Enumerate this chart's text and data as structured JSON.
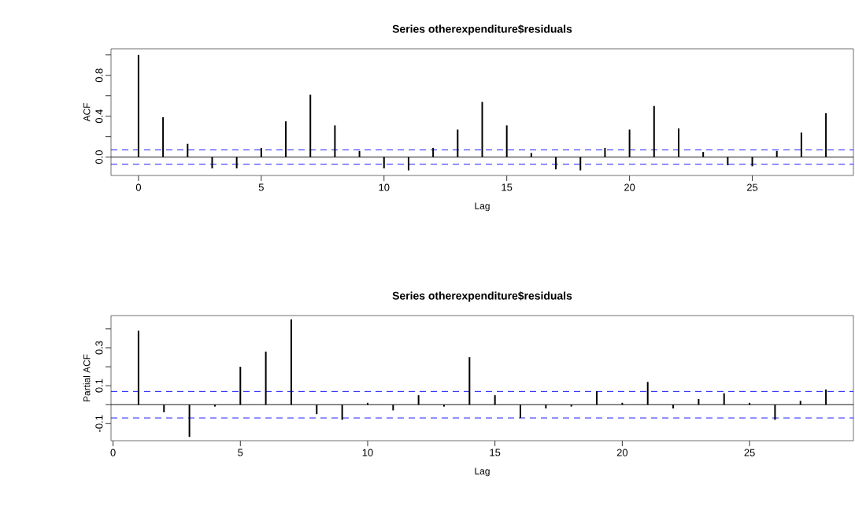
{
  "chart_data": [
    {
      "type": "bar",
      "title": "Series  otherexpenditure$residuals",
      "xlabel": "Lag",
      "ylabel": "ACF",
      "color": "#000000",
      "x": [
        0,
        1,
        2,
        3,
        4,
        5,
        6,
        7,
        8,
        9,
        10,
        11,
        12,
        13,
        14,
        15,
        16,
        17,
        18,
        19,
        20,
        21,
        22,
        23,
        24,
        25,
        26,
        27,
        28
      ],
      "values": [
        1.0,
        0.39,
        0.13,
        -0.11,
        -0.11,
        0.09,
        0.35,
        0.61,
        0.31,
        0.06,
        -0.11,
        -0.13,
        0.09,
        0.27,
        0.54,
        0.31,
        0.04,
        -0.12,
        -0.13,
        0.09,
        0.27,
        0.5,
        0.28,
        0.05,
        -0.08,
        -0.09,
        0.06,
        0.24,
        0.43
      ],
      "xlim": [
        -1.12,
        29.12
      ],
      "ylim": [
        -0.18,
        1.06
      ],
      "xticks": [
        0,
        5,
        10,
        15,
        20,
        25
      ],
      "yticks": [
        {
          "value": 0.0,
          "label": "0.0"
        },
        {
          "value": 0.2,
          "label": null
        },
        {
          "value": 0.4,
          "label": "0.4"
        },
        {
          "value": 0.6,
          "label": null
        },
        {
          "value": 0.8,
          "label": "0.8"
        },
        {
          "value": 1.0,
          "label": null
        }
      ],
      "ref_lines": [
        {
          "axis": "y",
          "value": 0,
          "color": "#000000",
          "line_style": "solid"
        },
        {
          "axis": "y",
          "value": 0.07,
          "color": "#0000ff",
          "line_style": "dashed"
        },
        {
          "axis": "y",
          "value": -0.07,
          "color": "#0000ff",
          "line_style": "dashed"
        }
      ]
    },
    {
      "type": "bar",
      "title": "Series  otherexpenditure$residuals",
      "xlabel": "Lag",
      "ylabel": "Partial ACF",
      "color": "#000000",
      "x": [
        1,
        2,
        3,
        4,
        5,
        6,
        7,
        8,
        9,
        10,
        11,
        12,
        13,
        14,
        15,
        16,
        17,
        18,
        19,
        20,
        21,
        22,
        23,
        24,
        25,
        26,
        27,
        28
      ],
      "values": [
        0.39,
        -0.04,
        -0.17,
        -0.01,
        0.2,
        0.28,
        0.45,
        -0.05,
        -0.08,
        0.01,
        -0.03,
        0.05,
        -0.01,
        0.25,
        0.05,
        -0.07,
        -0.02,
        -0.01,
        0.07,
        0.01,
        0.12,
        -0.02,
        0.03,
        0.06,
        0.01,
        -0.08,
        0.02,
        0.08
      ],
      "xlim": [
        -0.08,
        29.08
      ],
      "ylim": [
        -0.19,
        0.47
      ],
      "xticks": [
        0,
        5,
        10,
        15,
        20,
        25
      ],
      "yticks": [
        {
          "value": -0.1,
          "label": "-0.1"
        },
        {
          "value": 0.0,
          "label": null
        },
        {
          "value": 0.1,
          "label": "0.1"
        },
        {
          "value": 0.2,
          "label": null
        },
        {
          "value": 0.3,
          "label": "0.3"
        },
        {
          "value": 0.4,
          "label": null
        }
      ],
      "ref_lines": [
        {
          "axis": "y",
          "value": 0,
          "color": "#000000",
          "line_style": "solid"
        },
        {
          "axis": "y",
          "value": 0.07,
          "color": "#0000ff",
          "line_style": "dashed"
        },
        {
          "axis": "y",
          "value": -0.07,
          "color": "#0000ff",
          "line_style": "dashed"
        }
      ]
    }
  ]
}
